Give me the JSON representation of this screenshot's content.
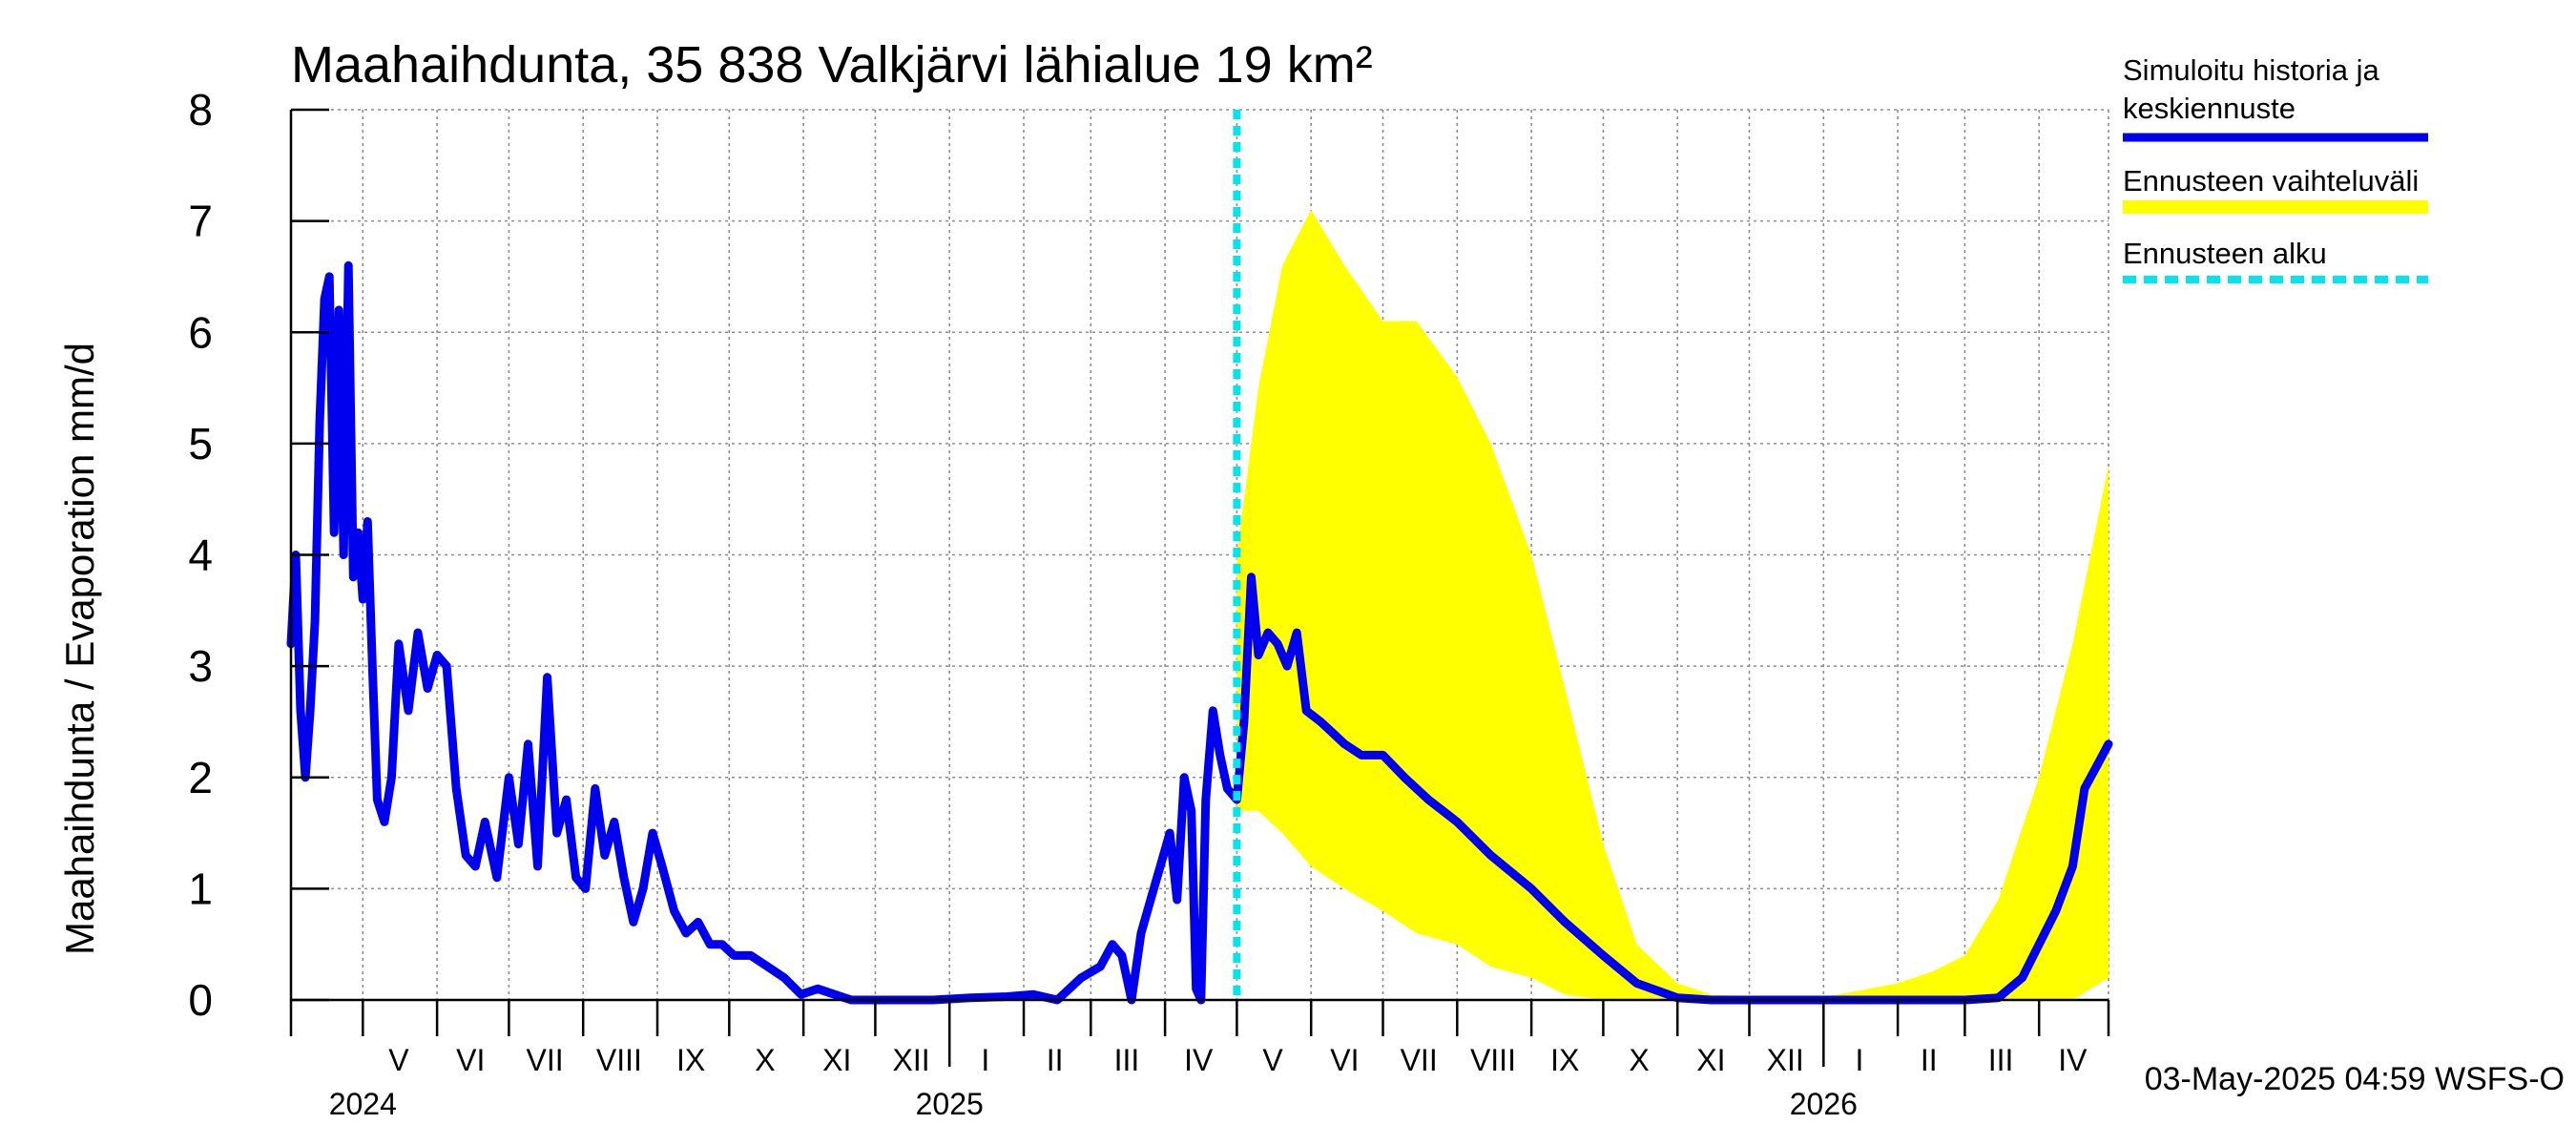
{
  "chart_data": {
    "type": "line",
    "title": "Maahaihdunta, 35 838 Valkjärvi lähialue 19 km²",
    "ylabel": "Maahaihdunta / Evaporation   mm/d",
    "ylim": [
      0,
      8
    ],
    "yticks": [
      "0",
      "1",
      "2",
      "3",
      "4",
      "5",
      "6",
      "7",
      "8"
    ],
    "xlim": [
      "2024-04-01",
      "2026-04-30"
    ],
    "grid": true,
    "legend_position": "right",
    "month_labels": [
      {
        "label": "V",
        "date": "2024-05-16"
      },
      {
        "label": "VI",
        "date": "2024-06-15"
      },
      {
        "label": "VII",
        "date": "2024-07-16"
      },
      {
        "label": "VIII",
        "date": "2024-08-16"
      },
      {
        "label": "IX",
        "date": "2024-09-15"
      },
      {
        "label": "X",
        "date": "2024-10-16"
      },
      {
        "label": "XI",
        "date": "2024-11-15"
      },
      {
        "label": "XII",
        "date": "2024-12-16"
      },
      {
        "label": "I",
        "date": "2025-01-16"
      },
      {
        "label": "II",
        "date": "2025-02-14"
      },
      {
        "label": "III",
        "date": "2025-03-16"
      },
      {
        "label": "IV",
        "date": "2025-04-15"
      },
      {
        "label": "V",
        "date": "2025-05-16"
      },
      {
        "label": "VI",
        "date": "2025-06-15"
      },
      {
        "label": "VII",
        "date": "2025-07-16"
      },
      {
        "label": "VIII",
        "date": "2025-08-16"
      },
      {
        "label": "IX",
        "date": "2025-09-15"
      },
      {
        "label": "X",
        "date": "2025-10-16"
      },
      {
        "label": "XI",
        "date": "2025-11-15"
      },
      {
        "label": "XII",
        "date": "2025-12-16"
      },
      {
        "label": "I",
        "date": "2026-01-16"
      },
      {
        "label": "II",
        "date": "2026-02-14"
      },
      {
        "label": "III",
        "date": "2026-03-16"
      },
      {
        "label": "IV",
        "date": "2026-04-15"
      }
    ],
    "year_labels": [
      {
        "label": "2024",
        "date": "2024-05-01"
      },
      {
        "label": "2025",
        "date": "2025-01-01"
      },
      {
        "label": "2026",
        "date": "2026-01-01"
      }
    ],
    "forecast_start": "2025-05-01",
    "legend": [
      {
        "label": "Simuloitu historia ja keskiennuste",
        "color": "#0000ee",
        "style": "solid"
      },
      {
        "label": "Ennusteen vaihteluväli",
        "color": "#ffff00",
        "style": "band"
      },
      {
        "label": "Ennusteen alku",
        "color": "#00e5ee",
        "style": "dashed"
      }
    ],
    "series": [
      {
        "name": "Simuloitu historia ja keskiennuste",
        "color": "#0000ee",
        "x": [
          "2024-04-01",
          "2024-04-03",
          "2024-04-05",
          "2024-04-07",
          "2024-04-09",
          "2024-04-11",
          "2024-04-13",
          "2024-04-15",
          "2024-04-17",
          "2024-04-19",
          "2024-04-21",
          "2024-04-23",
          "2024-04-25",
          "2024-04-27",
          "2024-04-29",
          "2024-05-01",
          "2024-05-03",
          "2024-05-05",
          "2024-05-07",
          "2024-05-10",
          "2024-05-13",
          "2024-05-16",
          "2024-05-20",
          "2024-05-24",
          "2024-05-28",
          "2024-06-01",
          "2024-06-05",
          "2024-06-09",
          "2024-06-13",
          "2024-06-17",
          "2024-06-21",
          "2024-06-26",
          "2024-07-01",
          "2024-07-05",
          "2024-07-09",
          "2024-07-13",
          "2024-07-17",
          "2024-07-21",
          "2024-07-25",
          "2024-07-29",
          "2024-08-02",
          "2024-08-06",
          "2024-08-10",
          "2024-08-14",
          "2024-08-18",
          "2024-08-22",
          "2024-08-26",
          "2024-08-30",
          "2024-09-03",
          "2024-09-08",
          "2024-09-13",
          "2024-09-18",
          "2024-09-23",
          "2024-09-28",
          "2024-10-03",
          "2024-10-10",
          "2024-10-17",
          "2024-10-24",
          "2024-10-31",
          "2024-11-07",
          "2024-11-14",
          "2024-11-21",
          "2024-11-28",
          "2024-12-10",
          "2024-12-25",
          "2025-01-10",
          "2025-01-25",
          "2025-02-05",
          "2025-02-15",
          "2025-02-25",
          "2025-03-05",
          "2025-03-10",
          "2025-03-14",
          "2025-03-18",
          "2025-03-22",
          "2025-03-26",
          "2025-03-30",
          "2025-04-03",
          "2025-04-06",
          "2025-04-09",
          "2025-04-12",
          "2025-04-14",
          "2025-04-16",
          "2025-04-18",
          "2025-04-21",
          "2025-04-24",
          "2025-04-27",
          "2025-05-01",
          "2025-05-04",
          "2025-05-07",
          "2025-05-10",
          "2025-05-14",
          "2025-05-18",
          "2025-05-22",
          "2025-05-26",
          "2025-05-30",
          "2025-06-05",
          "2025-06-10",
          "2025-06-15",
          "2025-06-22",
          "2025-07-01",
          "2025-07-10",
          "2025-07-20",
          "2025-08-01",
          "2025-08-15",
          "2025-09-01",
          "2025-09-15",
          "2025-10-01",
          "2025-10-15",
          "2025-11-01",
          "2025-11-15",
          "2025-12-01",
          "2025-12-15",
          "2026-01-01",
          "2026-01-15",
          "2026-02-01",
          "2026-02-15",
          "2026-03-01",
          "2026-03-15",
          "2026-03-25",
          "2026-04-01",
          "2026-04-08",
          "2026-04-15",
          "2026-04-20",
          "2026-04-25",
          "2026-04-30"
        ],
        "y": [
          3.2,
          4.0,
          2.6,
          2.0,
          2.6,
          3.4,
          5.2,
          6.3,
          6.5,
          4.2,
          6.2,
          4.0,
          6.6,
          3.8,
          4.2,
          3.6,
          4.3,
          3.0,
          1.8,
          1.6,
          2.0,
          3.2,
          2.6,
          3.3,
          2.8,
          3.1,
          3.0,
          1.9,
          1.3,
          1.2,
          1.6,
          1.1,
          2.0,
          1.4,
          2.3,
          1.2,
          2.9,
          1.5,
          1.8,
          1.1,
          1.0,
          1.9,
          1.3,
          1.6,
          1.1,
          0.7,
          1.0,
          1.5,
          1.2,
          0.8,
          0.6,
          0.7,
          0.5,
          0.5,
          0.4,
          0.4,
          0.3,
          0.2,
          0.05,
          0.1,
          0.05,
          0.0,
          0.0,
          0.0,
          0.0,
          0.02,
          0.03,
          0.05,
          0.0,
          0.2,
          0.3,
          0.5,
          0.4,
          0.0,
          0.6,
          0.9,
          1.2,
          1.5,
          0.9,
          2.0,
          1.7,
          0.1,
          0.0,
          1.8,
          2.6,
          2.2,
          1.9,
          1.8,
          2.5,
          3.8,
          3.1,
          3.3,
          3.2,
          3.0,
          3.3,
          2.6,
          2.5,
          2.4,
          2.3,
          2.2,
          2.2,
          2.0,
          1.8,
          1.6,
          1.3,
          1.0,
          0.7,
          0.4,
          0.15,
          0.02,
          0.0,
          0.0,
          0.0,
          0.0,
          0.0,
          0.0,
          0.0,
          0.0,
          0.02,
          0.2,
          0.5,
          0.8,
          1.2,
          1.9,
          2.1,
          2.3
        ]
      },
      {
        "name": "Ennusteen vaihteluväli",
        "color": "#ffff00",
        "x": [
          "2025-05-01",
          "2025-05-10",
          "2025-05-20",
          "2025-06-01",
          "2025-06-15",
          "2025-07-01",
          "2025-07-15",
          "2025-08-01",
          "2025-08-15",
          "2025-09-01",
          "2025-09-15",
          "2025-10-01",
          "2025-10-15",
          "2025-11-01",
          "2025-11-15",
          "2025-12-01",
          "2025-12-15",
          "2026-01-01",
          "2026-01-15",
          "2026-02-01",
          "2026-02-15",
          "2026-03-01",
          "2026-03-15",
          "2026-04-01",
          "2026-04-15",
          "2026-04-30"
        ],
        "upper": [
          4.0,
          5.5,
          6.6,
          7.1,
          6.6,
          6.1,
          6.1,
          5.6,
          5.0,
          4.0,
          2.8,
          1.4,
          0.5,
          0.15,
          0.05,
          0.03,
          0.03,
          0.03,
          0.08,
          0.15,
          0.25,
          0.4,
          0.9,
          2.0,
          3.2,
          4.8
        ],
        "lower": [
          1.7,
          1.7,
          1.5,
          1.2,
          1.0,
          0.8,
          0.6,
          0.5,
          0.3,
          0.2,
          0.05,
          0.0,
          0.0,
          0.0,
          0.0,
          0.0,
          0.0,
          0.0,
          0.0,
          0.0,
          0.0,
          0.0,
          0.0,
          0.0,
          0.0,
          0.2
        ]
      }
    ],
    "timestamp": "03-May-2025 04:59 WSFS-O"
  }
}
